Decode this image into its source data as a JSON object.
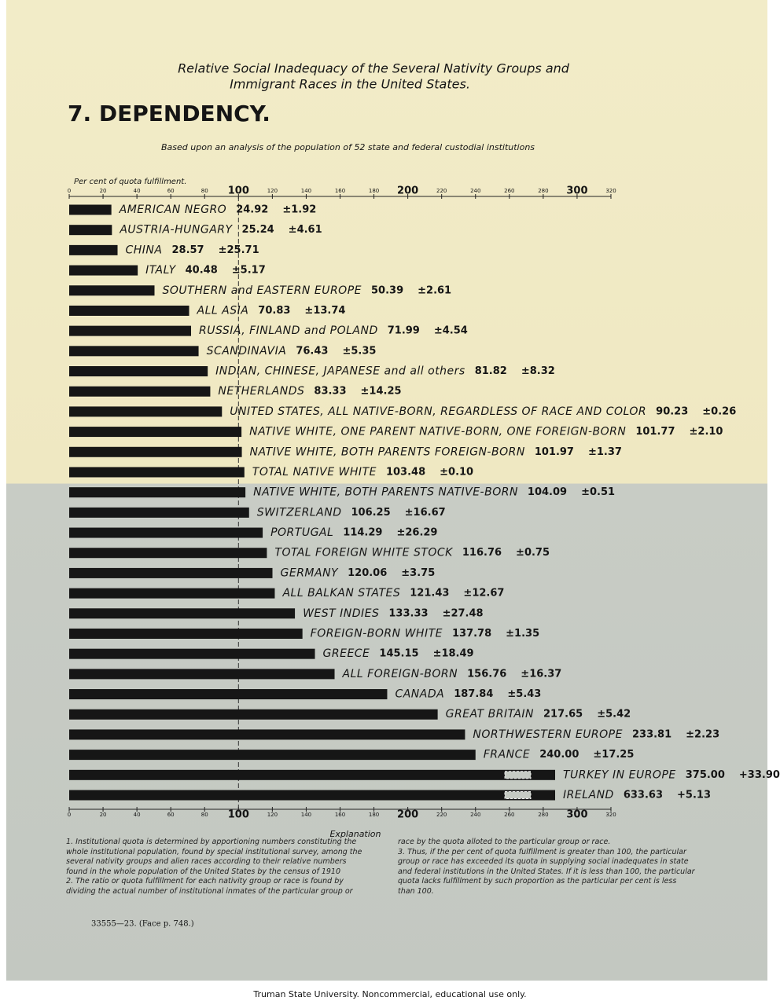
{
  "chart_data": {
    "type": "bar",
    "orientation": "horizontal",
    "title": [
      "Relative Social Inadequacy of the Several Nativity Groups and",
      "Immigrant Races in the United States."
    ],
    "heading": "7. DEPENDENCY.",
    "subtitle": "Based upon an analysis of the population of 52 state and federal custodial institutions",
    "xlabel": "Per cent of quota fulfillment.",
    "color": "#161616",
    "xlim": [
      0,
      320
    ],
    "xticks": [
      0,
      20,
      40,
      60,
      80,
      100,
      120,
      140,
      160,
      180,
      200,
      220,
      240,
      260,
      280,
      300,
      320
    ],
    "reference_line": 100,
    "categories": [
      "AMERICAN NEGRO",
      "AUSTRIA-HUNGARY",
      "CHINA",
      "ITALY",
      "SOUTHERN and EASTERN EUROPE",
      "ALL ASIA",
      "RUSSIA, FINLAND and POLAND",
      "SCANDINAVIA",
      "INDIAN, CHINESE, JAPANESE and all others",
      "NETHERLANDS",
      "UNITED STATES, ALL NATIVE-BORN, REGARDLESS OF RACE AND COLOR",
      "NATIVE WHITE, ONE PARENT NATIVE-BORN, ONE FOREIGN-BORN",
      "NATIVE WHITE, BOTH PARENTS FOREIGN-BORN",
      "TOTAL NATIVE WHITE",
      "NATIVE WHITE, BOTH PARENTS NATIVE-BORN",
      "SWITZERLAND",
      "PORTUGAL",
      "TOTAL FOREIGN WHITE STOCK",
      "GERMANY",
      "ALL BALKAN STATES",
      "WEST INDIES",
      "FOREIGN-BORN WHITE",
      "GREECE",
      "ALL FOREIGN-BORN",
      "CANADA",
      "GREAT BRITAIN",
      "NORTHWESTERN EUROPE",
      "FRANCE",
      "TURKEY IN EUROPE",
      "IRELAND"
    ],
    "values": [
      24.92,
      25.24,
      28.57,
      40.48,
      50.39,
      70.83,
      71.99,
      76.43,
      81.82,
      83.33,
      90.23,
      101.77,
      101.97,
      103.48,
      104.09,
      106.25,
      114.29,
      116.76,
      120.06,
      121.43,
      133.33,
      137.78,
      145.15,
      156.76,
      187.84,
      217.65,
      233.81,
      240.0,
      375.0,
      633.63
    ],
    "value_labels": [
      "24.92",
      "25.24",
      "28.57",
      "40.48",
      "50.39",
      "70.83",
      "71.99",
      "76.43",
      "81.82",
      "83.33",
      "90.23",
      "101.77",
      "101.97",
      "103.48",
      "104.09",
      "106.25",
      "114.29",
      "116.76",
      "120.06",
      "121.43",
      "133.33",
      "137.78",
      "145.15",
      "156.76",
      "187.84",
      "217.65",
      "233.81",
      "240.00",
      "375.00",
      "633.63"
    ],
    "error_labels": [
      "±1.92",
      "±4.61",
      "±25.71",
      "±5.17",
      "±2.61",
      "±13.74",
      "±4.54",
      "±5.35",
      "±8.32",
      "±14.25",
      "±0.26",
      "±2.10",
      "±1.37",
      "±0.10",
      "±0.51",
      "±16.67",
      "±26.29",
      "±0.75",
      "±3.75",
      "±12.67",
      "±27.48",
      "±1.35",
      "±18.49",
      "±16.37",
      "±5.43",
      "±5.42",
      "±2.23",
      "±17.25",
      "+33.90",
      "+5.13"
    ]
  },
  "explanation": {
    "title": "Explanation",
    "notes": [
      "1. Institutional quota is determined by apportioning numbers constituting the whole institutional population, found by special institutional survey, among the several nativity groups and alien races according to their relative numbers found in the whole population of the United States by the census of 1910",
      "2. The ratio or quota fulfillment for each nativity group or race is found by dividing the actual number of institutional inmates of the particular group or race by the quota alloted to the particular group or race.",
      "3. Thus, if the per cent of quota fulfillment is greater than 100, the particular group or race has exceeded its quota in supplying social inadequates in state and federal institutions in the United States. If it is less than 100, the particular quota lacks fulfillment by such proportion as the particular per cent is less than 100."
    ]
  },
  "print_mark": "33555—23. (Face p. 748.)",
  "credit": "Truman State University.  Noncommercial, educational use only."
}
